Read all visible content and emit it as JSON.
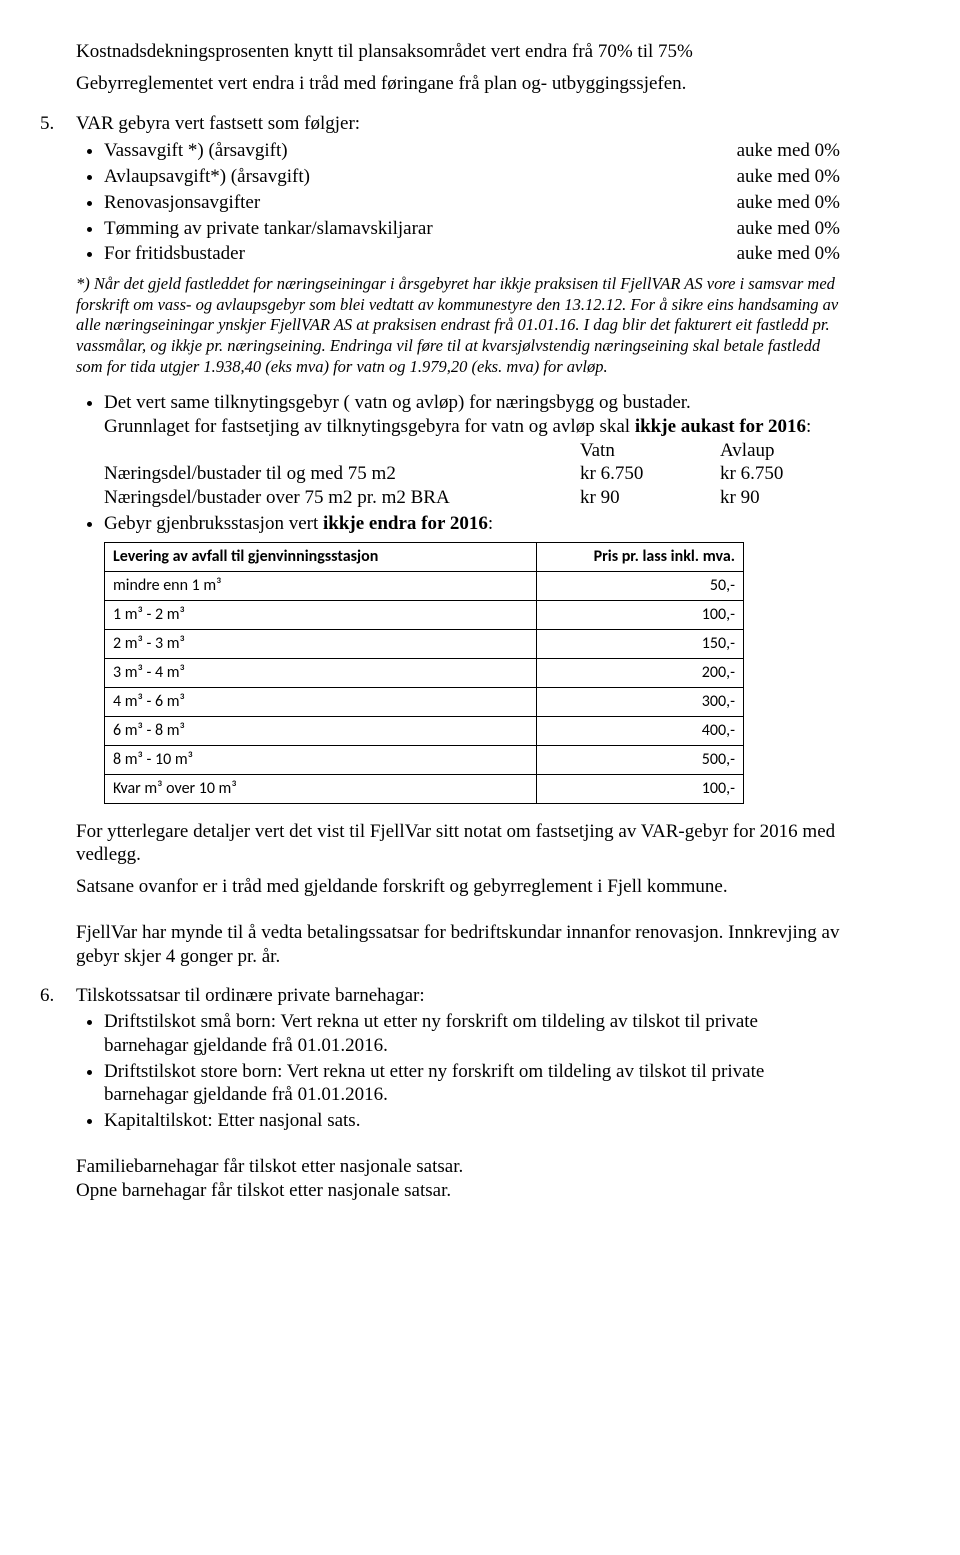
{
  "intro": {
    "l1": "Kostnadsdekningsprosenten knytt til plansaksområdet vert endra frå 70% til 75%",
    "l2": "Gebyrreglementet vert endra i tråd med føringane frå plan og- utbyggingssjefen."
  },
  "item5": {
    "num": "5.",
    "lead": "VAR gebyra vert fastsett som følgjer:",
    "rows": [
      {
        "label": "Vassavgift *) (årsavgift)",
        "value": "auke med 0%"
      },
      {
        "label": "Avlaupsavgift*) (årsavgift)",
        "value": "auke med 0%"
      },
      {
        "label": "Renovasjonsavgifter",
        "value": "auke med 0%"
      },
      {
        "label": "Tømming av private tankar/slamavskiljarar",
        "value": "auke med 0%"
      },
      {
        "label": "For fritidsbustader",
        "value": "auke med 0%"
      }
    ],
    "note": "*) Når det gjeld fastleddet for næringseiningar i årsgebyret har ikkje praksisen til FjellVAR AS vore i samsvar med forskrift om vass- og avlaupsgebyr som blei vedtatt av kommunestyre den 13.12.12. For å sikre eins handsaming av alle næringseiningar ynskjer FjellVAR AS at praksisen endrast frå 01.01.16. I dag blir det fakturert eit fastledd pr. vassmålar, og ikkje pr. næringseining. Endringa vil føre til at kvarsjølvstendig næringseining skal betale fastledd som for tida utgjer 1.938,40 (eks mva) for vatn og 1.979,20 (eks. mva) for avløp.",
    "tilknyt": {
      "p1": "Det vert same tilknytingsgebyr ( vatn og avløp) for næringsbygg og bustader.",
      "p2a": "Grunnlaget for fastsetjing av tilknytingsgebyra for vatn og avløp skal ",
      "p2b_bold": "ikkje aukast for 2016",
      "p2c": ":",
      "headers": {
        "c2": "Vatn",
        "c3": "Avlaup"
      },
      "rows": [
        {
          "c1": "Næringsdel/bustader til og med 75 m2",
          "c2": "kr 6.750",
          "c3": "kr 6.750"
        },
        {
          "c1": "Næringsdel/bustader over 75 m2  pr. m2 BRA",
          "c2": "kr 90",
          "c3": "kr 90"
        }
      ]
    },
    "gebyr": {
      "intro_a": "Gebyr gjenbruksstasjon vert ",
      "intro_bold": "ikkje endra for 2016",
      "intro_c": ":",
      "headers": {
        "c1": "Levering av avfall til gjenvinningsstasjon",
        "c2": "Pris pr. lass inkl. mva."
      },
      "rows": [
        {
          "c1": "mindre enn 1 m³",
          "c2": "50,-"
        },
        {
          "c1": "1 m³ - 2 m³",
          "c2": "100,-"
        },
        {
          "c1": "2 m³ - 3 m³",
          "c2": "150,-"
        },
        {
          "c1": "3 m³ - 4 m³",
          "c2": "200,-"
        },
        {
          "c1": "4 m³ - 6 m³",
          "c2": "300,-"
        },
        {
          "c1": "6 m³ - 8 m³",
          "c2": "400,-"
        },
        {
          "c1": "8 m³ - 10 m³",
          "c2": "500,-"
        },
        {
          "c1": "Kvar m³ over 10 m³",
          "c2": "100,-"
        }
      ]
    },
    "after_table": {
      "p1": "For ytterlegare detaljer vert det vist til FjellVar sitt notat om fastsetjing av VAR-gebyr for 2016 med vedlegg.",
      "p2": "Satsane ovanfor er i tråd med gjeldande forskrift og gebyrreglement i Fjell kommune.",
      "p3": "FjellVar har mynde til å vedta betalingssatsar for bedriftskundar innanfor renovasjon. Innkrevjing av gebyr skjer 4 gonger pr. år."
    }
  },
  "item6": {
    "num": "6.",
    "lead": "Tilskotssatsar til ordinære private barnehagar:",
    "bullets": [
      "Driftstilskot små born: Vert rekna ut etter ny forskrift om tildeling av tilskot til private barnehagar gjeldande frå 01.01.2016.",
      "Driftstilskot store born: Vert rekna ut etter ny forskrift om tildeling av tilskot til private barnehagar gjeldande frå 01.01.2016.",
      "Kapitaltilskot: Etter nasjonal sats."
    ],
    "tail1": "Familiebarnehagar får tilskot etter nasjonale satsar.",
    "tail2": "Opne barnehagar får tilskot etter nasjonale satsar."
  }
}
